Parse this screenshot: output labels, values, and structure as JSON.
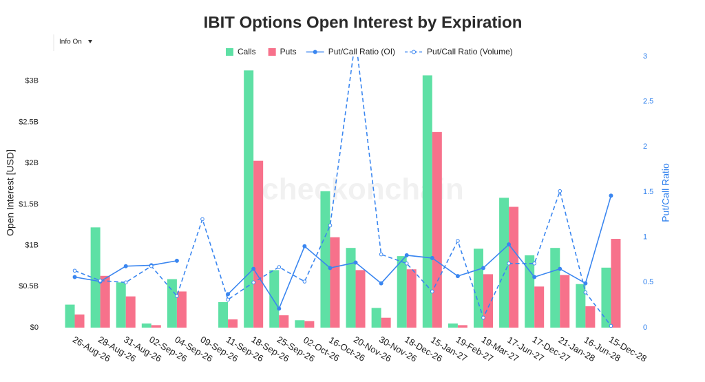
{
  "chart_data": {
    "type": "bar",
    "title": "IBIT Options Open Interest by Expiration",
    "info_dropdown": "Info On",
    "watermark": "checkonchain",
    "y_label": "Open Interest [USD]",
    "y2_label": "Put/Call Ratio",
    "categories": [
      "26-Aug-26",
      "28-Aug-26",
      "31-Aug-26",
      "02-Sep-26",
      "04-Sep-26",
      "09-Sep-26",
      "11-Sep-26",
      "18-Sep-26",
      "25-Sep-26",
      "02-Oct-26",
      "16-Oct-26",
      "20-Nov-26",
      "30-Nov-26",
      "18-Dec-26",
      "15-Jan-27",
      "19-Feb-27",
      "19-Mar-27",
      "17-Jun-27",
      "17-Dec-27",
      "21-Jan-28",
      "16-Jun-28",
      "15-Dec-28"
    ],
    "series": [
      {
        "name": "Calls",
        "type": "bar",
        "color": "#5ee0a5",
        "values": [
          280000000,
          1220000000,
          550000000,
          50000000,
          590000000,
          0,
          310000000,
          3130000000,
          700000000,
          90000000,
          1660000000,
          970000000,
          240000000,
          870000000,
          3070000000,
          50000000,
          960000000,
          1580000000,
          880000000,
          970000000,
          530000000,
          730000000
        ]
      },
      {
        "name": "Puts",
        "type": "bar",
        "color": "#f7718b",
        "values": [
          160000000,
          630000000,
          380000000,
          30000000,
          440000000,
          0,
          100000000,
          2030000000,
          150000000,
          80000000,
          1100000000,
          700000000,
          120000000,
          710000000,
          2380000000,
          30000000,
          650000000,
          1470000000,
          500000000,
          640000000,
          260000000,
          1080000000
        ]
      },
      {
        "name": "Put/Call Ratio (OI)",
        "type": "line",
        "axis": "y2",
        "color": "#3a86f0",
        "dash": false,
        "values": [
          0.56,
          0.51,
          0.68,
          0.69,
          0.74,
          null,
          0.37,
          0.65,
          0.21,
          0.9,
          0.66,
          0.72,
          0.49,
          0.8,
          0.77,
          0.57,
          0.66,
          0.92,
          0.56,
          0.65,
          0.49,
          1.46
        ]
      },
      {
        "name": "Put/Call Ratio (Volume)",
        "type": "line",
        "axis": "y2",
        "color": "#3a86f0",
        "dash": true,
        "values": [
          0.63,
          0.52,
          0.5,
          0.68,
          0.35,
          1.2,
          0.31,
          0.5,
          0.67,
          0.51,
          1.13,
          3.2,
          0.81,
          0.71,
          0.4,
          0.96,
          0.11,
          0.71,
          0.71,
          1.51,
          0.39,
          0.02
        ]
      }
    ],
    "ylim": [
      0,
      3300000000
    ],
    "yticks": [
      {
        "value": 0,
        "label": "$0"
      },
      {
        "value": 500000000,
        "label": "$0.5B"
      },
      {
        "value": 1000000000,
        "label": "$1B"
      },
      {
        "value": 1500000000,
        "label": "$1.5B"
      },
      {
        "value": 2000000000,
        "label": "$2B"
      },
      {
        "value": 2500000000,
        "label": "$2.5B"
      },
      {
        "value": 3000000000,
        "label": "$3B"
      }
    ],
    "y2lim": [
      0,
      3
    ],
    "y2ticks": [
      0,
      0.5,
      1,
      1.5,
      2,
      2.5,
      3
    ],
    "grid": false
  }
}
